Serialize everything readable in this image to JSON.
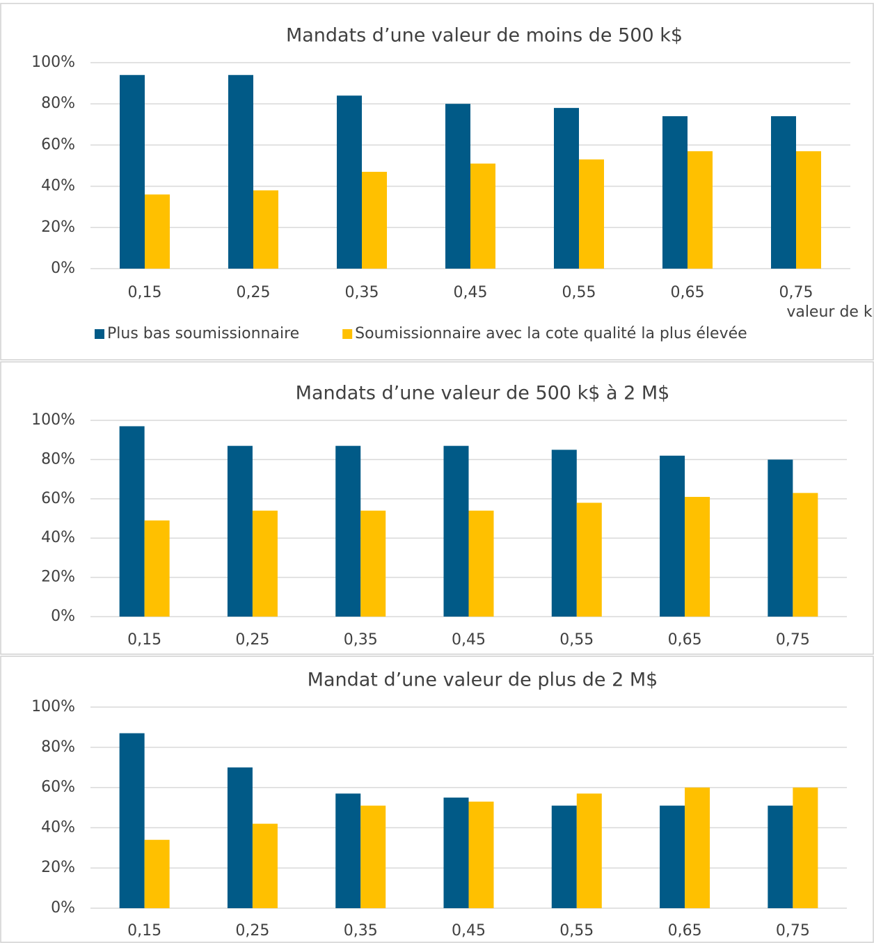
{
  "chart_data": [
    {
      "type": "bar",
      "title": "Mandats d’une valeur de moins de 500 k$",
      "x_label": "valeur de k",
      "categories": [
        "0,15",
        "0,25",
        "0,35",
        "0,45",
        "0,55",
        "0,65",
        "0,75"
      ],
      "series": [
        {
          "name": "Plus bas soumissionnaire",
          "color": "#015a87",
          "values": [
            94,
            94,
            84,
            80,
            78,
            74,
            74
          ]
        },
        {
          "name": "Soumissionnaire avec la cote qualité la plus élevée",
          "color": "#ffc000",
          "values": [
            36,
            38,
            47,
            51,
            53,
            57,
            57
          ]
        }
      ],
      "ylim": [
        0,
        100
      ],
      "yticks": [
        {
          "value": 0,
          "label": "0%"
        },
        {
          "value": 20,
          "label": "20%"
        },
        {
          "value": 40,
          "label": "40%"
        },
        {
          "value": 60,
          "label": "60%"
        },
        {
          "value": 80,
          "label": "80%"
        },
        {
          "value": 100,
          "label": "100%"
        }
      ],
      "grid": true,
      "legend": "bottom"
    },
    {
      "type": "bar",
      "title": "Mandats d’une valeur de 500 k$ à 2 M$",
      "categories": [
        "0,15",
        "0,25",
        "0,35",
        "0,45",
        "0,55",
        "0,65",
        "0,75"
      ],
      "series": [
        {
          "color": "#015a87",
          "values": [
            97,
            87,
            87,
            87,
            85,
            82,
            80
          ]
        },
        {
          "color": "#ffc000",
          "values": [
            49,
            54,
            54,
            54,
            58,
            61,
            63
          ]
        }
      ],
      "ylim": [
        0,
        100
      ],
      "yticks": [
        {
          "value": 0,
          "label": "0%"
        },
        {
          "value": 20,
          "label": "20%"
        },
        {
          "value": 40,
          "label": "40%"
        },
        {
          "value": 60,
          "label": "60%"
        },
        {
          "value": 80,
          "label": "80%"
        },
        {
          "value": 100,
          "label": "100%"
        }
      ],
      "grid": true
    },
    {
      "type": "bar",
      "title": "Mandat d’une valeur de plus de 2 M$",
      "categories": [
        "0,15",
        "0,25",
        "0,35",
        "0,45",
        "0,55",
        "0,65",
        "0,75"
      ],
      "series": [
        {
          "color": "#015a87",
          "values": [
            87,
            70,
            57,
            55,
            51,
            51,
            51
          ]
        },
        {
          "color": "#ffc000",
          "values": [
            34,
            42,
            51,
            53,
            57,
            60,
            60
          ]
        }
      ],
      "ylim": [
        0,
        100
      ],
      "yticks": [
        {
          "value": 0,
          "label": "0%"
        },
        {
          "value": 20,
          "label": "20%"
        },
        {
          "value": 40,
          "label": "40%"
        },
        {
          "value": 60,
          "label": "60%"
        },
        {
          "value": 80,
          "label": "80%"
        },
        {
          "value": 100,
          "label": "100%"
        }
      ],
      "grid": true
    }
  ]
}
